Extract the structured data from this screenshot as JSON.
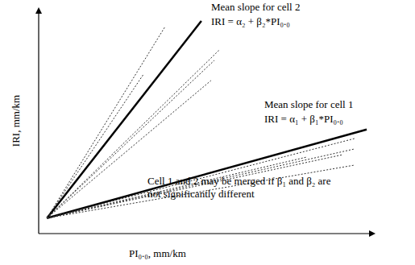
{
  "chart_data": {
    "type": "line",
    "xlabel": "PI₀.₀, mm/km",
    "ylabel": "IRI, mm/km",
    "xlim": [
      0,
      100
    ],
    "ylim": [
      0,
      100
    ],
    "tick_labels": false,
    "grid": false,
    "annotations": [
      "Mean slope for cell 2",
      "IRI = α₂ + β₂*PI₀.₀",
      "Mean slope for cell 1",
      "IRI = α₁ + β₁*PI₀.₀",
      "Cell 1 and 2 may be merged if β₁ and β₂ are",
      "not significantly different"
    ],
    "series": [
      {
        "x": [
          2.5,
          49
        ],
        "values": [
          7,
          96
        ],
        "color": "#000000",
        "line_style": "solid"
      },
      {
        "x": [
          2.5,
          98.8
        ],
        "values": [
          7,
          47
        ],
        "color": "#000000",
        "line_style": "solid"
      },
      {
        "x": [
          2.5,
          38.1
        ],
        "values": [
          7,
          93.5
        ],
        "color": "#333333",
        "line_style": "dotted"
      },
      {
        "x": [
          2.5,
          31.6
        ],
        "values": [
          7,
          72
        ],
        "color": "#333333",
        "line_style": "dotted"
      },
      {
        "x": [
          2.5,
          54.4
        ],
        "values": [
          7,
          82.9
        ],
        "color": "#333333",
        "line_style": "dotted"
      },
      {
        "x": [
          2.5,
          52.9
        ],
        "values": [
          7,
          78.2
        ],
        "color": "#333333",
        "line_style": "dotted"
      },
      {
        "x": [
          2.5,
          51.9
        ],
        "values": [
          7,
          69.1
        ],
        "color": "#333333",
        "line_style": "dotted"
      },
      {
        "x": [
          2.5,
          95.1
        ],
        "values": [
          7,
          42.9
        ],
        "color": "#333333",
        "line_style": "dotted"
      },
      {
        "x": [
          2.5,
          95.1
        ],
        "values": [
          7,
          38.2
        ],
        "color": "#333333",
        "line_style": "dotted"
      },
      {
        "x": [
          2.5,
          91.5
        ],
        "values": [
          7,
          35.6
        ],
        "color": "#333333",
        "line_style": "dotted"
      },
      {
        "x": [
          2.5,
          95.1
        ],
        "values": [
          7,
          30.9
        ],
        "color": "#333333",
        "line_style": "dotted"
      },
      {
        "x": [
          2.5,
          80.6
        ],
        "values": [
          7,
          34.5
        ],
        "color": "#333333",
        "line_style": "dotted"
      }
    ]
  }
}
